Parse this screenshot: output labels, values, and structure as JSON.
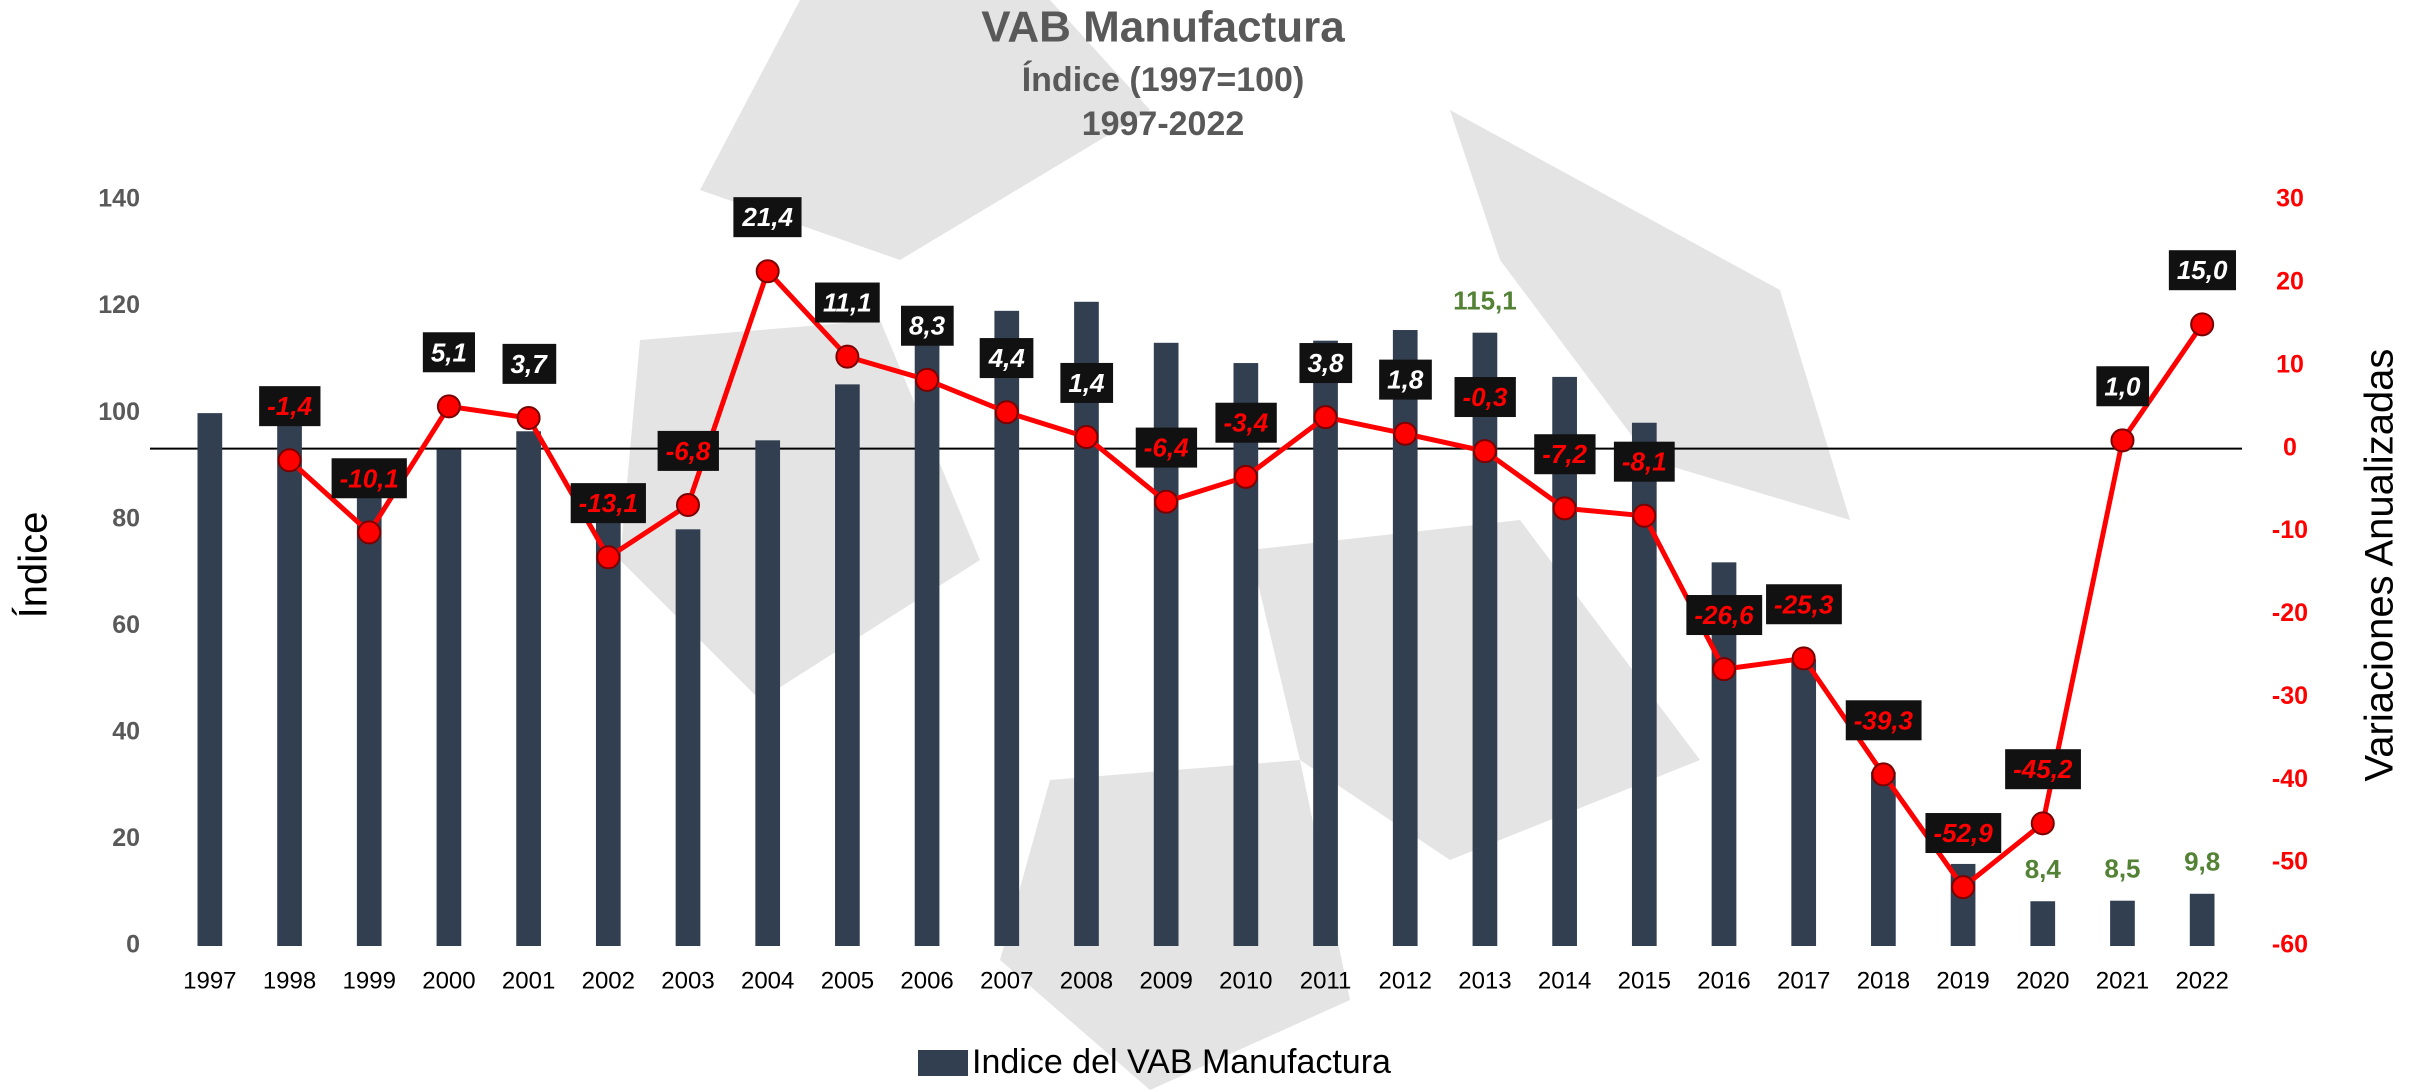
{
  "chart_data": {
    "type": "bar",
    "title": "VAB Manufactura",
    "subtitle": [
      "Índice (1997=100)",
      "1997-2022"
    ],
    "y_label": "Índice",
    "y2_label": "Variaciones Anualizadas",
    "categories": [
      "1997",
      "1998",
      "1999",
      "2000",
      "2001",
      "2002",
      "2003",
      "2004",
      "2005",
      "2006",
      "2007",
      "2008",
      "2009",
      "2010",
      "2011",
      "2012",
      "2013",
      "2014",
      "2015",
      "2016",
      "2017",
      "2018",
      "2019",
      "2020",
      "2021",
      "2022"
    ],
    "series": [
      {
        "name": "Indice del VAB Manufactura",
        "type": "bar",
        "color": "#323f51",
        "label_color": "#548235",
        "values": [
          100,
          98.6,
          88.7,
          93.2,
          96.6,
          83.9,
          78.2,
          94.9,
          105.4,
          114.2,
          119.2,
          120.9,
          113.2,
          109.4,
          113.6,
          115.6,
          115.1,
          106.8,
          98.2,
          72.0,
          53.8,
          32.7,
          15.4,
          8.4,
          8.5,
          9.8
        ],
        "value_labels": [
          null,
          null,
          null,
          null,
          null,
          null,
          null,
          null,
          null,
          null,
          null,
          null,
          null,
          null,
          null,
          null,
          "115,1",
          null,
          null,
          null,
          null,
          null,
          null,
          "8,4",
          "8,5",
          "9,8"
        ]
      },
      {
        "type": "line",
        "axis": "y2",
        "color": "#ff0000",
        "values": [
          null,
          -1.4,
          -10.1,
          5.1,
          3.7,
          -13.1,
          -6.8,
          21.4,
          11.1,
          8.3,
          4.4,
          1.4,
          -6.4,
          -3.4,
          3.8,
          1.8,
          -0.3,
          -7.2,
          -8.1,
          -26.6,
          -25.3,
          -39.3,
          -52.9,
          -45.2,
          1.0,
          15.0
        ],
        "value_labels": [
          null,
          "-1,4",
          "-10,1",
          "5,1",
          "3,7",
          "-13,1",
          "-6,8",
          "21,4",
          "11,1",
          "8,3",
          "4,4",
          "1,4",
          "-6,4",
          "-3,4",
          "3,8",
          "1,8",
          "-0,3",
          "-7,2",
          "-8,1",
          "-26,6",
          "-25,3",
          "-39,3",
          "-52,9",
          "-45,2",
          "1,0",
          "15,0"
        ]
      }
    ],
    "ylim": [
      0,
      140
    ],
    "yticks": [
      0,
      20,
      40,
      60,
      80,
      100,
      120,
      140
    ],
    "y2lim": [
      -60,
      30
    ],
    "y2ticks": [
      -60,
      -50,
      -40,
      -30,
      -20,
      -10,
      0,
      10,
      20,
      30
    ],
    "y2_color": "#ff0000",
    "zero_line": true,
    "grid": false,
    "legend": "bottom"
  }
}
